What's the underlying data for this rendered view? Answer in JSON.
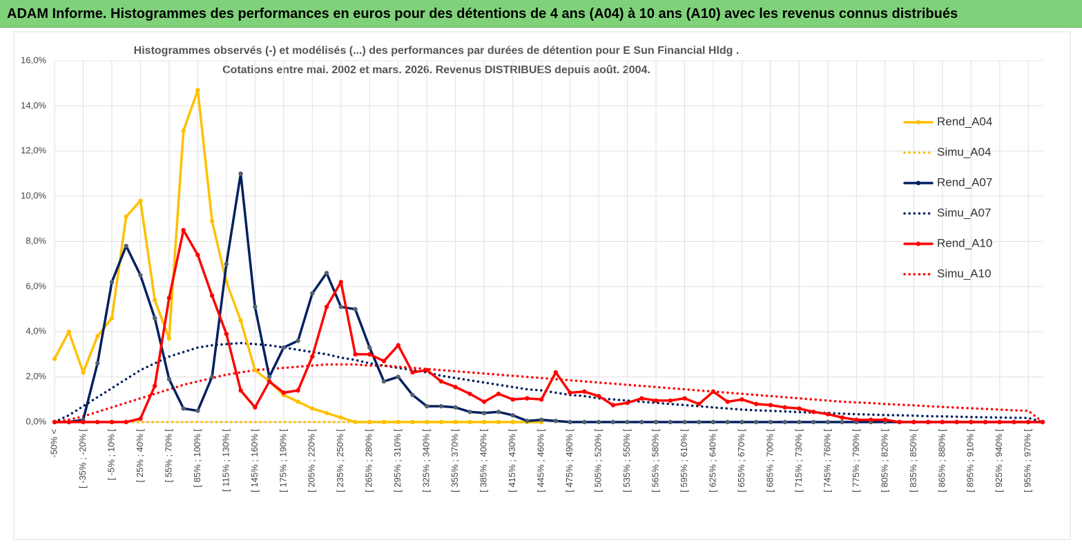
{
  "header": {
    "title": "ADAM Informe. Histogrammes des performances en euros pour des détentions de 4 ans (A04) à 10 ans (A10) avec les revenus connus distribués"
  },
  "chart_data": {
    "type": "line",
    "title": "Histogrammes observés (-) et modélisés (...) des performances par durées de détention pour E Sun Financial Hldg .",
    "subtitle": "Cotations entre mai. 2002 et mars. 2026. Revenus DISTRIBUES depuis août. 2004.",
    "categories": [
      "-50% <",
      null,
      "[ -35% ; -20% [",
      null,
      "[ -5% ; 10% [",
      null,
      "[ 25% ; 40% [",
      null,
      "[ 55% ; 70% [",
      null,
      "[ 85% ; 100% [",
      null,
      "[ 115% ; 130% [",
      null,
      "[ 145% ; 160% [",
      null,
      "[ 175% ; 190% [",
      null,
      "[ 205% ; 220% [",
      null,
      "[ 235% ; 250% [",
      null,
      "[ 265% ; 280% [",
      null,
      "[ 295% ; 310% [",
      null,
      "[ 325% ; 340% [",
      null,
      "[ 355% ; 370% [",
      null,
      "[ 385% ; 400% [",
      null,
      "[ 415% ; 430% [",
      null,
      "[ 445% ; 460% [",
      null,
      "[ 475% ; 490% [",
      null,
      "[ 505% ; 520% [",
      null,
      "[ 535% ; 550% [",
      null,
      "[ 565% ; 580% [",
      null,
      "[ 595% ; 610% [",
      null,
      "[ 625% ; 640% [",
      null,
      "[ 655% ; 670% [",
      null,
      "[ 685% ; 700% [",
      null,
      "[ 715% ; 730% [",
      null,
      "[ 745% ; 760% [",
      null,
      "[ 775% ; 790% [",
      null,
      "[ 805% ; 820% [",
      null,
      "[ 835% ; 850% [",
      null,
      "[ 865% ; 880% [",
      null,
      "[ 895% ; 910% [",
      null,
      "[ 925% ; 940% [",
      null,
      "[ 955% ; 970% [",
      null
    ],
    "series": [
      {
        "name": "Rend_A04",
        "color": "#ffc000",
        "style": "solid",
        "values": [
          2.8,
          4.0,
          2.2,
          3.8,
          4.6,
          9.1,
          9.8,
          5.4,
          3.7,
          12.9,
          14.7,
          8.9,
          6.2,
          4.5,
          2.3,
          1.8,
          1.2,
          0.9,
          0.6,
          0.4,
          0.2,
          0,
          0,
          0,
          0,
          0,
          0,
          0,
          0,
          0,
          0,
          0,
          0,
          0,
          0,
          null,
          null,
          null,
          null,
          null,
          null,
          null,
          null,
          null,
          null,
          null,
          null,
          null,
          null,
          null,
          null,
          null,
          null,
          null,
          null,
          null,
          null,
          null,
          null,
          null,
          null,
          null,
          null,
          null,
          null,
          null,
          null,
          null,
          null,
          null
        ]
      },
      {
        "name": "Simu_A04",
        "color": "#ffc000",
        "style": "dotted",
        "values": [
          0,
          0,
          0,
          0,
          0,
          0,
          0,
          0,
          0,
          0,
          0,
          0,
          0,
          0,
          0,
          0,
          0,
          0,
          0,
          0,
          0,
          0,
          0,
          0,
          0,
          0,
          0,
          0,
          0,
          0,
          0,
          0,
          0,
          0,
          0,
          null,
          null,
          null,
          null,
          null,
          null,
          null,
          null,
          null,
          null,
          null,
          null,
          null,
          null,
          null,
          null,
          null,
          null,
          null,
          null,
          null,
          null,
          null,
          null,
          null,
          null,
          null,
          null,
          null,
          null,
          null,
          null,
          null,
          null,
          null
        ]
      },
      {
        "name": "Rend_A07",
        "color": "#002060",
        "style": "solid",
        "values": [
          0,
          0,
          0.1,
          2.6,
          6.2,
          7.8,
          6.5,
          4.6,
          1.9,
          0.6,
          0.5,
          2.0,
          7.0,
          11.0,
          5.1,
          2.0,
          3.3,
          3.6,
          5.7,
          6.6,
          5.1,
          5.0,
          3.3,
          1.8,
          2.0,
          1.2,
          0.7,
          0.7,
          0.65,
          0.45,
          0.4,
          0.45,
          0.3,
          0.05,
          0.1,
          0.05,
          0,
          0,
          0,
          0,
          0,
          0,
          0,
          0,
          0,
          0,
          0,
          0,
          0,
          0,
          0,
          0,
          0,
          0,
          0,
          0,
          0,
          0,
          0,
          0,
          0,
          0,
          0,
          0,
          0,
          0,
          0,
          0,
          0,
          0
        ]
      },
      {
        "name": "Simu_A07",
        "color": "#002060",
        "style": "dotted",
        "values": [
          0,
          0.3,
          0.7,
          1.1,
          1.5,
          1.9,
          2.3,
          2.6,
          2.9,
          3.1,
          3.3,
          3.4,
          3.45,
          3.5,
          3.45,
          3.4,
          3.3,
          3.2,
          3.1,
          3.0,
          2.85,
          2.75,
          2.6,
          2.5,
          2.4,
          2.3,
          2.2,
          2.05,
          1.95,
          1.85,
          1.75,
          1.65,
          1.55,
          1.45,
          1.4,
          1.3,
          1.2,
          1.15,
          1.05,
          1.0,
          0.95,
          0.9,
          0.85,
          0.8,
          0.75,
          0.7,
          0.65,
          0.6,
          0.55,
          0.52,
          0.5,
          0.47,
          0.44,
          0.42,
          0.4,
          0.37,
          0.35,
          0.33,
          0.31,
          0.3,
          0.28,
          0.26,
          0.25,
          0.24,
          0.22,
          0.21,
          0.2,
          0.19,
          0.18,
          0
        ]
      },
      {
        "name": "Rend_A10",
        "color": "#ff0000",
        "style": "solid",
        "values": [
          0,
          0,
          0,
          0,
          0,
          0,
          0.15,
          1.6,
          5.5,
          8.5,
          7.4,
          5.6,
          3.9,
          1.4,
          0.65,
          1.8,
          1.3,
          1.4,
          2.9,
          5.1,
          6.2,
          3.0,
          3.0,
          2.7,
          3.4,
          2.2,
          2.3,
          1.8,
          1.55,
          1.25,
          0.9,
          1.25,
          1.0,
          1.05,
          1.0,
          2.2,
          1.3,
          1.35,
          1.15,
          0.75,
          0.85,
          1.05,
          0.95,
          0.95,
          1.05,
          0.8,
          1.35,
          0.9,
          1.0,
          0.8,
          0.75,
          0.65,
          0.6,
          0.45,
          0.35,
          0.2,
          0.1,
          0.1,
          0.1,
          0,
          0,
          0,
          0,
          0,
          0,
          0,
          0,
          0,
          0,
          0
        ]
      },
      {
        "name": "Simu_A10",
        "color": "#ff0000",
        "style": "dotted",
        "values": [
          0,
          0.1,
          0.25,
          0.45,
          0.65,
          0.85,
          1.05,
          1.25,
          1.45,
          1.65,
          1.8,
          1.95,
          2.1,
          2.2,
          2.3,
          2.35,
          2.4,
          2.45,
          2.5,
          2.55,
          2.55,
          2.55,
          2.5,
          2.5,
          2.45,
          2.4,
          2.35,
          2.3,
          2.25,
          2.2,
          2.15,
          2.1,
          2.05,
          2.0,
          1.95,
          1.9,
          1.85,
          1.8,
          1.75,
          1.7,
          1.65,
          1.6,
          1.55,
          1.5,
          1.45,
          1.4,
          1.35,
          1.3,
          1.25,
          1.2,
          1.15,
          1.1,
          1.05,
          1.0,
          0.95,
          0.9,
          0.87,
          0.84,
          0.8,
          0.77,
          0.74,
          0.7,
          0.67,
          0.64,
          0.61,
          0.58,
          0.55,
          0.52,
          0.5,
          0
        ]
      }
    ],
    "ylim": [
      0,
      16
    ],
    "yticks": [
      {
        "value": 0,
        "label": "0,0%"
      },
      {
        "value": 2,
        "label": "2,0%"
      },
      {
        "value": 4,
        "label": "4,0%"
      },
      {
        "value": 6,
        "label": "6,0%"
      },
      {
        "value": 8,
        "label": "8,0%"
      },
      {
        "value": 10,
        "label": "10,0%"
      },
      {
        "value": 12,
        "label": "12,0%"
      },
      {
        "value": 14,
        "label": "14,0%"
      },
      {
        "value": 16,
        "label": "16,0%"
      }
    ],
    "grid": true,
    "legend": "right"
  }
}
